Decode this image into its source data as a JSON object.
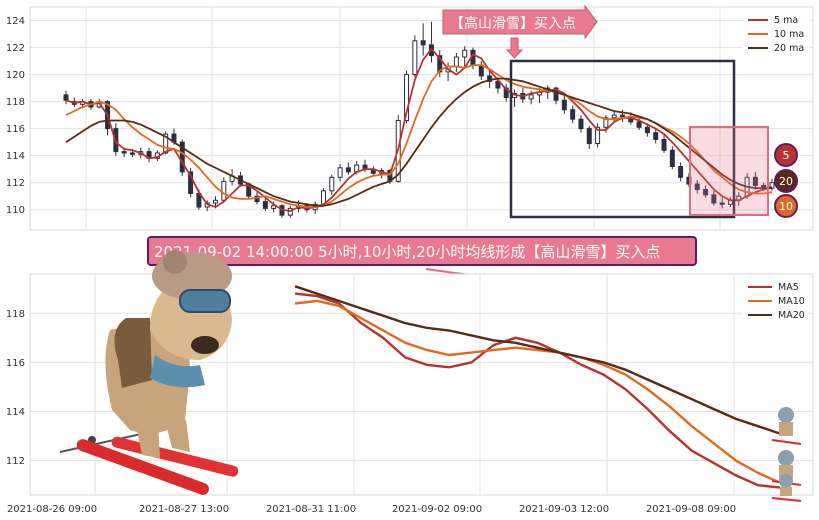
{
  "chart_data": [
    {
      "type": "candlestick",
      "ylim": [
        108.5,
        125
      ],
      "yticks": [
        110,
        112,
        114,
        116,
        118,
        120,
        122,
        124
      ],
      "grid": true,
      "legend_position": "top-right",
      "series": [
        {
          "name": "5 ma",
          "color": "#b83232",
          "values": [
            118.1,
            117.9,
            118.0,
            117.8,
            117.9,
            117.0,
            115.0,
            114.5,
            114.4,
            114.2,
            113.8,
            113.9,
            114.3,
            114.5,
            113.5,
            112.5,
            111.3,
            110.4,
            110.2,
            110.6,
            111.2,
            111.8,
            111.8,
            111.4,
            110.9,
            110.4,
            110.0,
            109.9,
            110.2,
            110.1,
            110.2,
            110.4,
            110.9,
            111.6,
            112.3,
            112.8,
            113.0,
            113.0,
            112.8,
            112.6,
            114.5,
            117.2,
            119.6,
            121.1,
            121.9,
            121.2,
            120.4,
            120.0,
            120.5,
            121.5,
            121.2,
            120.3,
            119.6,
            118.9,
            118.5,
            118.4,
            118.6,
            118.7,
            118.8,
            118.9,
            118.6,
            118.0,
            117.4,
            116.6,
            115.9,
            115.9,
            116.5,
            116.8,
            116.8,
            116.6,
            116.3,
            116.0,
            115.6,
            115.0,
            114.3,
            113.6,
            112.9,
            112.2,
            111.5,
            111.0,
            110.7,
            110.7,
            111.0,
            111.3,
            111.5,
            111.7
          ]
        },
        {
          "name": "10 ma",
          "color": "#e06b1e",
          "values": [
            117.0,
            117.3,
            117.6,
            117.8,
            118.0,
            117.8,
            117.4,
            116.7,
            116.1,
            115.6,
            115.2,
            114.8,
            114.6,
            114.5,
            114.2,
            113.7,
            113.1,
            112.4,
            111.7,
            111.2,
            110.9,
            110.8,
            110.8,
            110.9,
            111.0,
            110.8,
            110.6,
            110.4,
            110.3,
            110.2,
            110.2,
            110.3,
            110.6,
            111.1,
            111.6,
            112.0,
            112.3,
            112.5,
            112.6,
            112.6,
            113.4,
            114.9,
            116.6,
            118.2,
            119.5,
            120.3,
            120.6,
            120.6,
            120.5,
            120.7,
            120.7,
            120.4,
            120.0,
            119.6,
            119.3,
            119.1,
            119.0,
            118.9,
            118.8,
            118.7,
            118.5,
            118.2,
            117.8,
            117.3,
            116.9,
            116.7,
            116.7,
            116.8,
            116.9,
            116.8,
            116.7,
            116.4,
            116.1,
            115.8,
            115.4,
            114.9,
            114.3,
            113.6,
            112.9,
            112.4,
            111.9,
            111.5,
            111.3,
            111.2,
            111.2,
            111.3
          ]
        },
        {
          "name": "20 ma",
          "color": "#5a2a14",
          "values": [
            115.0,
            115.4,
            115.8,
            116.2,
            116.5,
            116.6,
            116.6,
            116.6,
            116.5,
            116.3,
            116.0,
            115.7,
            115.4,
            115.0,
            114.6,
            114.2,
            113.8,
            113.4,
            113.1,
            112.8,
            112.5,
            112.2,
            111.9,
            111.6,
            111.3,
            111.0,
            110.8,
            110.6,
            110.5,
            110.4,
            110.3,
            110.3,
            110.4,
            110.6,
            110.8,
            111.1,
            111.4,
            111.7,
            111.9,
            112.1,
            112.6,
            113.4,
            114.3,
            115.2,
            116.1,
            116.9,
            117.6,
            118.2,
            118.7,
            119.1,
            119.4,
            119.6,
            119.7,
            119.7,
            119.6,
            119.5,
            119.3,
            119.1,
            118.9,
            118.7,
            118.5,
            118.3,
            118.1,
            117.9,
            117.7,
            117.5,
            117.3,
            117.2,
            117.1,
            116.9,
            116.7,
            116.4,
            116.0,
            115.6,
            115.1,
            114.6,
            114.1,
            113.6,
            113.1,
            112.6,
            112.2,
            111.9,
            111.7,
            111.6,
            111.6,
            111.6
          ]
        }
      ],
      "candles": [
        [
          118.5,
          118.8,
          117.8,
          118.1
        ],
        [
          118.0,
          118.3,
          117.6,
          117.8
        ],
        [
          117.8,
          118.2,
          117.5,
          118.0
        ],
        [
          118.0,
          118.2,
          117.4,
          117.6
        ],
        [
          117.6,
          118.2,
          117.5,
          118.0
        ],
        [
          118.0,
          118.1,
          115.5,
          116.0
        ],
        [
          116.0,
          116.4,
          114.0,
          114.3
        ],
        [
          114.3,
          114.6,
          113.9,
          114.2
        ],
        [
          114.2,
          114.5,
          113.9,
          114.1
        ],
        [
          114.1,
          114.6,
          113.8,
          114.3
        ],
        [
          114.3,
          114.6,
          113.5,
          113.8
        ],
        [
          113.8,
          114.4,
          113.6,
          114.2
        ],
        [
          114.2,
          115.8,
          114.1,
          115.6
        ],
        [
          115.6,
          116.0,
          114.8,
          115.0
        ],
        [
          115.0,
          115.2,
          112.5,
          112.8
        ],
        [
          112.8,
          113.1,
          110.9,
          111.2
        ],
        [
          111.2,
          111.5,
          110.0,
          110.2
        ],
        [
          110.2,
          110.7,
          109.9,
          110.5
        ],
        [
          110.5,
          111.0,
          110.1,
          110.7
        ],
        [
          110.7,
          112.4,
          110.5,
          112.1
        ],
        [
          112.1,
          113.0,
          111.8,
          112.5
        ],
        [
          112.5,
          112.8,
          111.7,
          111.9
        ],
        [
          111.9,
          112.0,
          110.8,
          111.0
        ],
        [
          111.0,
          111.3,
          110.4,
          110.6
        ],
        [
          110.6,
          110.9,
          109.9,
          110.1
        ],
        [
          110.1,
          110.6,
          109.8,
          110.3
        ],
        [
          110.3,
          110.4,
          109.4,
          109.6
        ],
        [
          109.6,
          110.3,
          109.4,
          110.1
        ],
        [
          110.1,
          110.7,
          109.8,
          110.3
        ],
        [
          110.3,
          110.5,
          109.8,
          110.0
        ],
        [
          110.0,
          110.6,
          109.7,
          110.4
        ],
        [
          110.4,
          111.6,
          110.2,
          111.4
        ],
        [
          111.4,
          112.6,
          111.1,
          112.4
        ],
        [
          112.4,
          113.4,
          112.1,
          113.1
        ],
        [
          113.1,
          113.5,
          112.6,
          112.8
        ],
        [
          112.8,
          113.6,
          112.6,
          113.3
        ],
        [
          113.3,
          113.7,
          112.8,
          113.0
        ],
        [
          113.0,
          113.2,
          112.5,
          112.7
        ],
        [
          112.7,
          113.1,
          112.3,
          112.9
        ],
        [
          112.9,
          113.0,
          111.9,
          112.1
        ],
        [
          112.1,
          117.0,
          112.0,
          116.6
        ],
        [
          116.6,
          120.3,
          116.4,
          120.0
        ],
        [
          120.0,
          122.9,
          119.8,
          122.5
        ],
        [
          122.5,
          123.8,
          121.4,
          122.2
        ],
        [
          122.2,
          123.9,
          120.9,
          121.4
        ],
        [
          121.4,
          121.8,
          119.8,
          120.2
        ],
        [
          120.2,
          120.9,
          119.5,
          120.6
        ],
        [
          120.6,
          121.6,
          120.2,
          121.3
        ],
        [
          121.3,
          122.1,
          120.6,
          121.8
        ],
        [
          121.8,
          122.0,
          120.4,
          120.7
        ],
        [
          120.7,
          121.0,
          119.6,
          119.9
        ],
        [
          119.9,
          120.4,
          119.0,
          119.5
        ],
        [
          119.5,
          119.8,
          118.6,
          119.0
        ],
        [
          119.0,
          119.3,
          118.0,
          118.3
        ],
        [
          118.3,
          118.9,
          117.6,
          118.6
        ],
        [
          118.6,
          119.0,
          117.9,
          118.2
        ],
        [
          118.2,
          118.8,
          117.8,
          118.5
        ],
        [
          118.5,
          119.0,
          117.9,
          118.7
        ],
        [
          118.7,
          119.2,
          118.2,
          119.0
        ],
        [
          119.0,
          119.1,
          117.8,
          118.1
        ],
        [
          118.1,
          118.6,
          117.1,
          117.4
        ],
        [
          117.4,
          117.7,
          116.4,
          116.7
        ],
        [
          116.7,
          117.0,
          115.7,
          116.0
        ],
        [
          116.0,
          116.2,
          114.5,
          114.9
        ],
        [
          114.9,
          116.4,
          114.6,
          116.1
        ],
        [
          116.1,
          117.0,
          115.7,
          116.8
        ],
        [
          116.8,
          117.3,
          116.5,
          117.0
        ],
        [
          117.0,
          117.4,
          116.5,
          116.9
        ],
        [
          116.9,
          117.2,
          116.3,
          116.5
        ],
        [
          116.5,
          116.8,
          115.9,
          116.1
        ],
        [
          116.1,
          116.4,
          115.4,
          115.7
        ],
        [
          115.7,
          116.0,
          114.9,
          115.2
        ],
        [
          115.2,
          115.5,
          114.2,
          114.4
        ],
        [
          114.4,
          114.7,
          113.0,
          113.2
        ],
        [
          113.2,
          113.5,
          112.1,
          112.4
        ],
        [
          112.4,
          112.7,
          111.7,
          111.9
        ],
        [
          111.9,
          112.2,
          111.2,
          111.5
        ],
        [
          111.5,
          111.8,
          110.9,
          111.1
        ],
        [
          111.1,
          111.4,
          110.3,
          110.5
        ],
        [
          110.5,
          110.9,
          110.1,
          110.4
        ],
        [
          110.4,
          110.9,
          110.2,
          110.7
        ],
        [
          110.7,
          111.3,
          110.3,
          111.0
        ],
        [
          111.0,
          112.7,
          110.8,
          112.4
        ],
        [
          112.4,
          112.8,
          111.5,
          111.8
        ],
        [
          111.8,
          112.0,
          111.4,
          111.6
        ],
        [
          111.6,
          112.3,
          111.4,
          112.0
        ]
      ],
      "annotations": [
        "【高山滑雪】买入点",
        "5",
        "20",
        "10"
      ],
      "highlight_from_index": 60
    },
    {
      "type": "line",
      "ylim": [
        110.6,
        119.6
      ],
      "yticks": [
        112,
        114,
        116,
        118
      ],
      "x_tick_labels": [
        "2021-08-26 09:00",
        "2021-08-27 13:00",
        "2021-08-31 11:00",
        "2021-09-02 09:00",
        "2021-09-03 12:00",
        "2021-09-08 09:00"
      ],
      "grid": true,
      "legend_position": "top-right",
      "series": [
        {
          "name": "MA5",
          "color": "#b83232",
          "values": [
            118.8,
            118.7,
            118.4,
            117.6,
            117.0,
            116.2,
            115.9,
            115.8,
            116.0,
            116.7,
            117.0,
            116.8,
            116.4,
            115.9,
            115.5,
            114.9,
            114.1,
            113.2,
            112.4,
            111.9,
            111.4,
            111.0,
            110.9
          ]
        },
        {
          "name": "MA10",
          "color": "#e06b1e",
          "values": [
            118.4,
            118.5,
            118.3,
            117.8,
            117.3,
            116.8,
            116.5,
            116.3,
            116.4,
            116.5,
            116.6,
            116.5,
            116.4,
            116.2,
            115.9,
            115.5,
            114.9,
            114.2,
            113.4,
            112.7,
            112.0,
            111.5,
            111.1
          ]
        },
        {
          "name": "MA20",
          "color": "#5a2a14",
          "values": [
            119.1,
            118.8,
            118.5,
            118.2,
            117.9,
            117.6,
            117.4,
            117.3,
            117.1,
            116.9,
            116.8,
            116.6,
            116.4,
            116.2,
            116.0,
            115.7,
            115.3,
            114.9,
            114.5,
            114.1,
            113.7,
            113.4,
            113.1
          ]
        }
      ],
      "annotations": [
        "2021-09-02 14:00:00 5小时,10小时,20小时均线形成【高山滑雪】买入点"
      ]
    }
  ],
  "colors": {
    "accent_pink": "#e8798e",
    "callout_border": "#5a1c6e",
    "frame": "#2b2f3f"
  }
}
